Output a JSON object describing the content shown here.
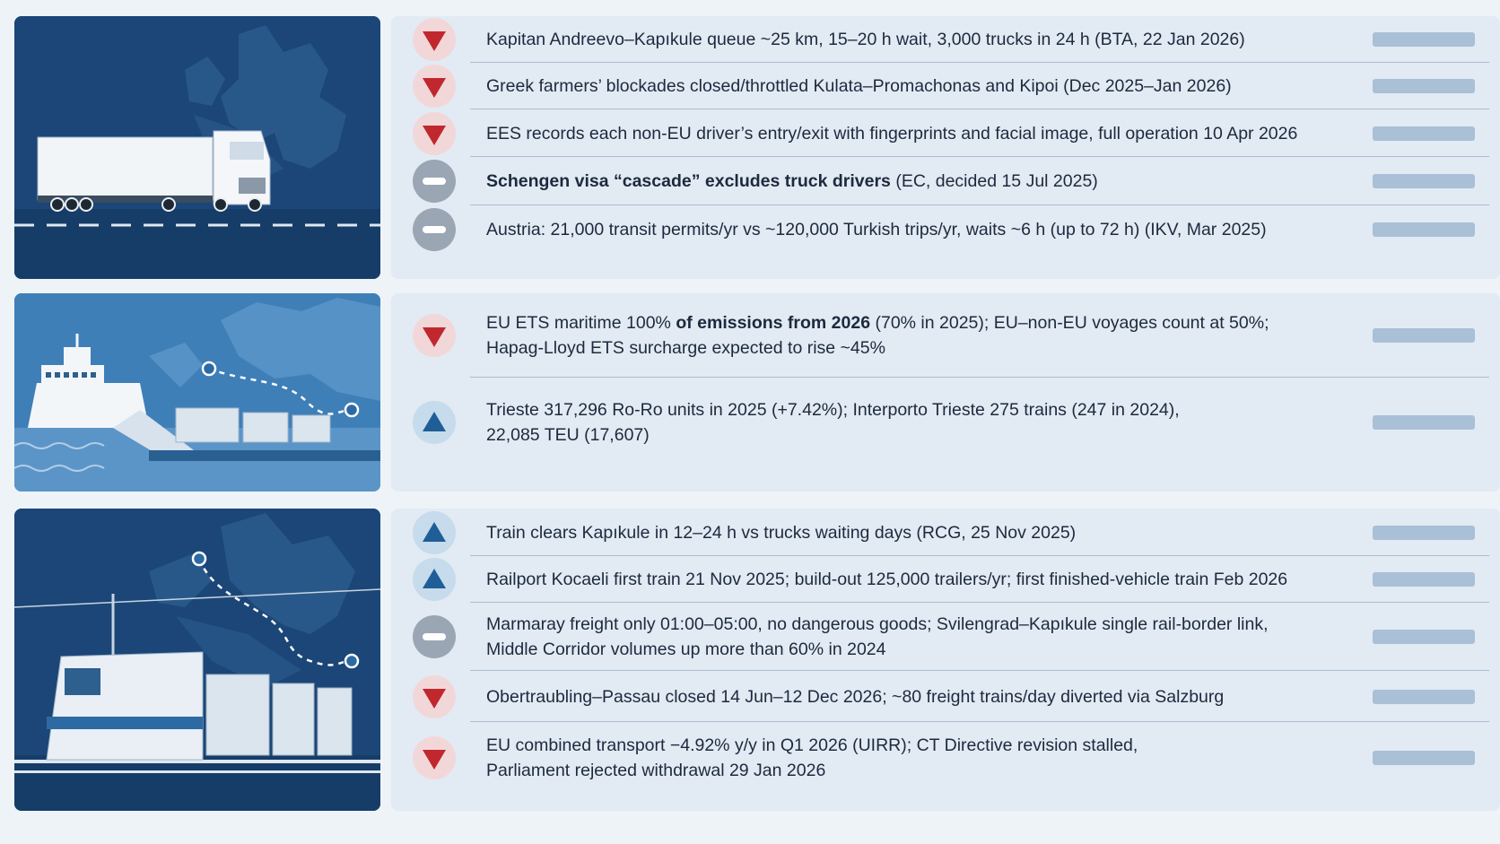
{
  "sections": [
    {
      "name": "road",
      "rows": [
        {
          "direction": "down",
          "segments": [
            {
              "text": "Kapitan Andreevo–Kapıkule queue ~25 km, 15–20 h wait, 3,000 trucks in 24 h (BTA, 22 Jan 2026)",
              "bold": false
            }
          ]
        },
        {
          "direction": "down",
          "segments": [
            {
              "text": "Greek farmers’ blockades closed/throttled Kulata–Promachonas and Kipoi (Dec 2025–Jan 2026)",
              "bold": false
            }
          ]
        },
        {
          "direction": "down",
          "segments": [
            {
              "text": "EES records each non-EU driver’s entry/exit with fingerprints and facial image, full operation 10 Apr 2026",
              "bold": false
            }
          ]
        },
        {
          "direction": "neutral",
          "segments": [
            {
              "text": "Schengen visa “cascade” excludes truck drivers",
              "bold": true
            },
            {
              "text": " (EC, decided 15 Jul 2025)",
              "bold": false
            }
          ]
        },
        {
          "direction": "neutral",
          "segments": [
            {
              "text": "Austria: 21,000 transit permits/yr vs ~120,000 Turkish trips/yr, waits ~6 h (up to 72 h) (IKV, Mar 2025)",
              "bold": false
            }
          ]
        }
      ]
    },
    {
      "name": "sea",
      "rows": [
        {
          "direction": "down",
          "lines": [
            [
              {
                "text": "EU ETS maritime 100% ",
                "bold": false
              },
              {
                "text": "of emissions from 2026",
                "bold": true
              },
              {
                "text": " (70% in 2025); EU–non-EU voyages count at 50%;",
                "bold": false
              }
            ],
            [
              {
                "text": "Hapag-Lloyd ETS surcharge expected to rise ~45%",
                "bold": false
              }
            ]
          ]
        },
        {
          "direction": "up",
          "lines": [
            [
              {
                "text": "Trieste 317,296 Ro-Ro units in 2025 (+7.42%); Interporto Trieste 275 trains (247 in 2024),",
                "bold": false
              }
            ],
            [
              {
                "text": "22,085 TEU (17,607)",
                "bold": false
              }
            ]
          ]
        }
      ]
    },
    {
      "name": "rail",
      "rows": [
        {
          "direction": "up",
          "lines": [
            [
              {
                "text": "Train clears Kapıkule in 12–24 h vs trucks waiting days (RCG, 25 Nov 2025)",
                "bold": false
              }
            ]
          ]
        },
        {
          "direction": "up",
          "lines": [
            [
              {
                "text": "Railport Kocaeli first train 21 Nov 2025; build-out 125,000 trailers/yr; first finished-vehicle train Feb 2026",
                "bold": false
              }
            ]
          ]
        },
        {
          "direction": "neutral",
          "lines": [
            [
              {
                "text": "Marmaray freight only 01:00–05:00, no dangerous goods; Svilengrad–Kapıkule single rail-border link,",
                "bold": false
              }
            ],
            [
              {
                "text": "Middle Corridor volumes up more than 60% in 2024",
                "bold": false
              }
            ]
          ]
        },
        {
          "direction": "down",
          "lines": [
            [
              {
                "text": "Obertraubling–Passau closed 14 Jun–12 Dec 2026; ~80 freight trains/day diverted via Salzburg",
                "bold": false
              }
            ]
          ]
        },
        {
          "direction": "down",
          "lines": [
            [
              {
                "text": "EU combined transport −4.92% y/y in Q1 2026 (UIRR); CT Directive revision stalled,",
                "bold": false
              }
            ],
            [
              {
                "text": "Parliament rejected withdrawal 29 Jan 2026",
                "bold": false
              }
            ]
          ]
        }
      ]
    }
  ],
  "icons": {
    "down": "down-triangle-icon",
    "up": "up-triangle-icon",
    "neutral": "minus-icon"
  },
  "colors": {
    "down": "#c0282d",
    "up": "#1f5e96",
    "neutral": "#ffffff"
  }
}
